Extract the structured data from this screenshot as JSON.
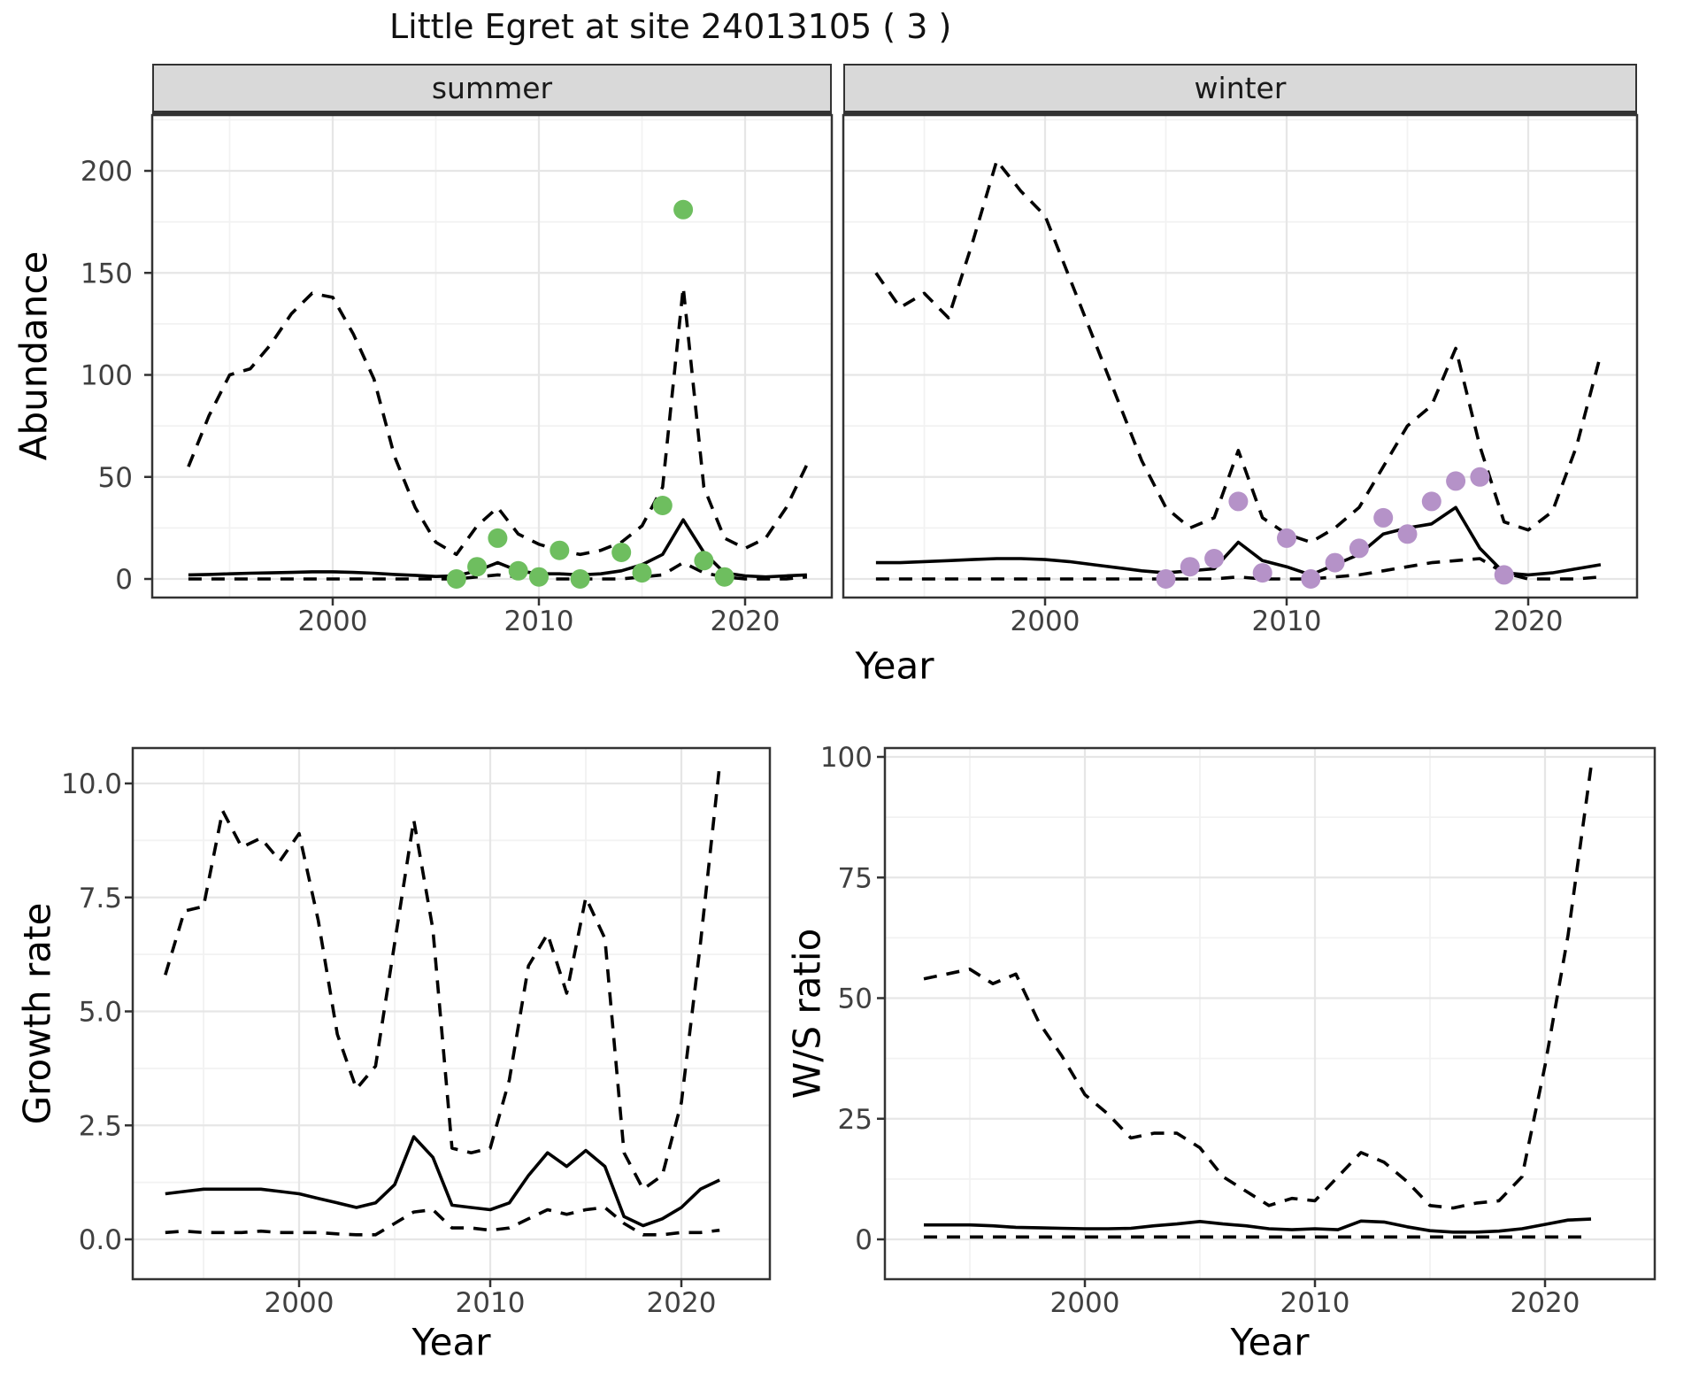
{
  "title": "Little Egret at site 24013105 ( 3 )",
  "axes": {
    "abundance_label": "Abundance",
    "year_label_top": "Year",
    "growth_label": "Growth rate",
    "year_label_growth": "Year",
    "ws_label": "W/S ratio",
    "year_label_ws": "Year"
  },
  "facets": {
    "summer_label": "summer",
    "winter_label": "winter"
  },
  "colors": {
    "point_green": "#6ebe5f",
    "point_purple": "#b592c8",
    "strip_bg": "#d9d9d9",
    "grid_major": "#e6e6e6",
    "grid_minor": "#f2f2f2",
    "panel_border": "#333333",
    "line": "#000000",
    "tick_text": "#404040"
  },
  "chart_data": [
    {
      "id": "summer-abundance",
      "type": "line",
      "facet_label": "summer",
      "xlabel": "Year",
      "ylabel": "Abundance",
      "xticks": [
        2000,
        2010,
        2020
      ],
      "xticks_minor": [
        1995,
        2005,
        2015
      ],
      "yticks": [
        0,
        50,
        100,
        150,
        200
      ],
      "ytick_labels": [
        "0",
        "50",
        "100",
        "150",
        "200"
      ],
      "yticks_minor": [
        25,
        75,
        125,
        175,
        225
      ],
      "xlim": [
        1991.3,
        2024.7
      ],
      "ylim": [
        0,
        215
      ],
      "x": [
        1993,
        1994,
        1995,
        1996,
        1997,
        1998,
        1999,
        2000,
        2001,
        2002,
        2003,
        2004,
        2005,
        2006,
        2007,
        2008,
        2009,
        2010,
        2011,
        2012,
        2013,
        2014,
        2015,
        2016,
        2017,
        2018,
        2019,
        2020,
        2021,
        2022,
        2023
      ],
      "series": [
        {
          "name": "mean",
          "style": "solid",
          "values": [
            2,
            2.2,
            2.5,
            2.8,
            3,
            3.2,
            3.5,
            3.5,
            3.2,
            2.8,
            2.2,
            1.8,
            1.2,
            1.5,
            4,
            8,
            4,
            2.5,
            2.5,
            2,
            2.5,
            4,
            7,
            12,
            29,
            13,
            3,
            1.5,
            1,
            1.5,
            2
          ]
        },
        {
          "name": "upper_ci",
          "style": "dashed",
          "values": [
            55,
            80,
            100,
            103,
            115,
            130,
            140,
            138,
            120,
            98,
            60,
            35,
            18,
            12,
            26,
            35,
            22,
            17,
            14,
            12,
            14,
            18,
            26,
            45,
            143,
            45,
            20,
            15,
            20,
            35,
            56
          ]
        },
        {
          "name": "lower_ci",
          "style": "dashed",
          "values": [
            0,
            0,
            0,
            0,
            0,
            0,
            0,
            0,
            0,
            0,
            0,
            0,
            0,
            0,
            1,
            2,
            1,
            0,
            0,
            0,
            0,
            0,
            1,
            2,
            8,
            3,
            1,
            0,
            0,
            0,
            1
          ]
        }
      ],
      "points": {
        "color_key": "point_green",
        "x": [
          2006,
          2007,
          2008,
          2009,
          2010,
          2011,
          2012,
          2014,
          2015,
          2016,
          2017,
          2018,
          2019
        ],
        "y": [
          0,
          6,
          20,
          4,
          1,
          14,
          0,
          13,
          3,
          36,
          181,
          9,
          1
        ]
      }
    },
    {
      "id": "winter-abundance",
      "type": "line",
      "facet_label": "winter",
      "xlabel": "Year",
      "ylabel": "Abundance",
      "xticks": [
        2000,
        2010,
        2020
      ],
      "xticks_minor": [
        1995,
        2005,
        2015
      ],
      "yticks": [
        0,
        50,
        100,
        150,
        200
      ],
      "ytick_labels": [
        "0",
        "50",
        "100",
        "150",
        "200"
      ],
      "yticks_minor": [
        25,
        75,
        125,
        175,
        225
      ],
      "xlim": [
        1991.3,
        2024.7
      ],
      "ylim": [
        0,
        215
      ],
      "x": [
        1993,
        1994,
        1995,
        1996,
        1997,
        1998,
        1999,
        2000,
        2001,
        2002,
        2003,
        2004,
        2005,
        2006,
        2007,
        2008,
        2009,
        2010,
        2011,
        2012,
        2013,
        2014,
        2015,
        2016,
        2017,
        2018,
        2019,
        2020,
        2021,
        2022,
        2023
      ],
      "series": [
        {
          "name": "mean",
          "style": "solid",
          "values": [
            8,
            8,
            8.5,
            9,
            9.5,
            10,
            10,
            9.5,
            8.5,
            7,
            5.5,
            4,
            3,
            4,
            5,
            18,
            9,
            6,
            2,
            7,
            12,
            22,
            25,
            27,
            35,
            15,
            3,
            2,
            3,
            5,
            7
          ]
        },
        {
          "name": "upper_ci",
          "style": "dashed",
          "values": [
            150,
            133,
            140,
            128,
            165,
            205,
            190,
            178,
            148,
            118,
            88,
            58,
            35,
            25,
            30,
            63,
            30,
            22,
            18,
            25,
            35,
            55,
            75,
            85,
            113,
            65,
            28,
            24,
            33,
            65,
            110
          ]
        },
        {
          "name": "lower_ci",
          "style": "dashed",
          "values": [
            0,
            0,
            0,
            0,
            0,
            0,
            0,
            0,
            0,
            0,
            0,
            0,
            0,
            0,
            0,
            1,
            0,
            0,
            0,
            1,
            2,
            4,
            6,
            8,
            9,
            10,
            3,
            0,
            0,
            0,
            1
          ]
        }
      ],
      "points": {
        "color_key": "point_purple",
        "x": [
          2005,
          2006,
          2007,
          2008,
          2009,
          2010,
          2011,
          2012,
          2013,
          2014,
          2015,
          2016,
          2017,
          2018,
          2019
        ],
        "y": [
          0,
          6,
          10,
          38,
          3,
          20,
          0,
          8,
          15,
          30,
          22,
          38,
          48,
          50,
          2
        ]
      }
    },
    {
      "id": "growth-rate",
      "type": "line",
      "xlabel": "Year",
      "ylabel": "Growth rate",
      "xticks": [
        2000,
        2010,
        2020
      ],
      "xticks_minor": [
        1995,
        2005,
        2015
      ],
      "yticks": [
        0,
        2.5,
        5,
        7.5,
        10
      ],
      "ytick_labels": [
        "0.0",
        "2.5",
        "5.0",
        "7.5",
        "10.0"
      ],
      "yticks_minor": [
        1.25,
        3.75,
        6.25,
        8.75
      ],
      "xlim": [
        1991.3,
        2024.7
      ],
      "ylim": [
        0,
        10.6
      ],
      "x": [
        1993,
        1994,
        1995,
        1996,
        1997,
        1998,
        1999,
        2000,
        2001,
        2002,
        2003,
        2004,
        2005,
        2006,
        2007,
        2008,
        2009,
        2010,
        2011,
        2012,
        2013,
        2014,
        2015,
        2016,
        2017,
        2018,
        2019,
        2020,
        2021,
        2022
      ],
      "series": [
        {
          "name": "mean",
          "style": "solid",
          "values": [
            1.0,
            1.05,
            1.1,
            1.1,
            1.1,
            1.1,
            1.05,
            1.0,
            0.9,
            0.8,
            0.7,
            0.8,
            1.2,
            2.25,
            1.8,
            0.75,
            0.7,
            0.65,
            0.8,
            1.4,
            1.9,
            1.6,
            1.95,
            1.6,
            0.5,
            0.3,
            0.45,
            0.7,
            1.1,
            1.3
          ]
        },
        {
          "name": "upper_ci",
          "style": "dashed",
          "values": [
            5.8,
            7.2,
            7.3,
            9.4,
            8.6,
            8.8,
            8.3,
            8.9,
            7.0,
            4.5,
            3.3,
            3.8,
            6.5,
            9.2,
            6.8,
            2.0,
            1.9,
            2.0,
            3.5,
            6.0,
            6.7,
            5.4,
            7.5,
            6.6,
            1.9,
            1.1,
            1.4,
            3.0,
            6.5,
            10.4
          ]
        },
        {
          "name": "lower_ci",
          "style": "dashed",
          "values": [
            0.15,
            0.18,
            0.15,
            0.15,
            0.15,
            0.18,
            0.15,
            0.15,
            0.15,
            0.12,
            0.1,
            0.1,
            0.35,
            0.6,
            0.65,
            0.25,
            0.25,
            0.2,
            0.25,
            0.45,
            0.65,
            0.55,
            0.65,
            0.7,
            0.35,
            0.1,
            0.1,
            0.15,
            0.15,
            0.2
          ]
        }
      ]
    },
    {
      "id": "ws-ratio",
      "type": "line",
      "xlabel": "Year",
      "ylabel": "W/S ratio",
      "xticks": [
        2000,
        2010,
        2020
      ],
      "xticks_minor": [
        1995,
        2005,
        2015
      ],
      "yticks": [
        0,
        25,
        50,
        75,
        100
      ],
      "ytick_labels": [
        "0",
        "25",
        "50",
        "75",
        "100"
      ],
      "yticks_minor": [
        12.5,
        37.5,
        62.5,
        87.5
      ],
      "xlim": [
        1991.3,
        2024.7
      ],
      "ylim": [
        0,
        102
      ],
      "x": [
        1993,
        1994,
        1995,
        1996,
        1997,
        1998,
        1999,
        2000,
        2001,
        2002,
        2003,
        2004,
        2005,
        2006,
        2007,
        2008,
        2009,
        2010,
        2011,
        2012,
        2013,
        2014,
        2015,
        2016,
        2017,
        2018,
        2019,
        2020,
        2021,
        2022
      ],
      "series": [
        {
          "name": "mean",
          "style": "solid",
          "values": [
            3,
            3,
            3,
            2.8,
            2.5,
            2.4,
            2.3,
            2.2,
            2.2,
            2.3,
            2.8,
            3.2,
            3.7,
            3.2,
            2.8,
            2.2,
            2.0,
            2.2,
            2.0,
            3.8,
            3.6,
            2.6,
            1.8,
            1.5,
            1.5,
            1.7,
            2.2,
            3.1,
            4.0,
            4.2
          ]
        },
        {
          "name": "upper_ci",
          "style": "dashed",
          "values": [
            54,
            55,
            56,
            53,
            55,
            45,
            38,
            30,
            26,
            21,
            22,
            22,
            19,
            13,
            10,
            7,
            8.5,
            8,
            13,
            18,
            16,
            12,
            7,
            6.5,
            7.5,
            8,
            13,
            36,
            63,
            98
          ]
        },
        {
          "name": "lower_ci",
          "style": "dashed",
          "values": [
            0.5,
            0.5,
            0.5,
            0.5,
            0.5,
            0.5,
            0.5,
            0.5,
            0.5,
            0.5,
            0.5,
            0.5,
            0.5,
            0.5,
            0.5,
            0.5,
            0.5,
            0.5,
            0.5,
            0.5,
            0.5,
            0.5,
            0.5,
            0.5,
            0.5,
            0.5,
            0.5,
            0.5,
            0.5,
            0.5
          ]
        }
      ]
    }
  ]
}
